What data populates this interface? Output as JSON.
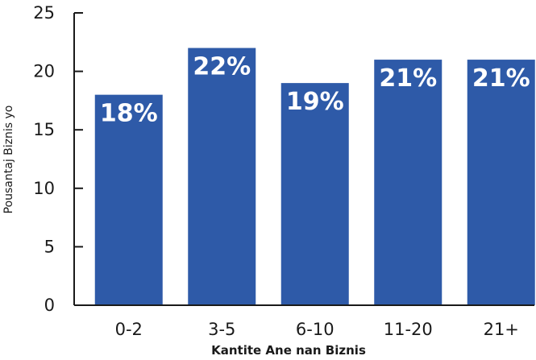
{
  "chart_data": {
    "type": "bar",
    "categories": [
      "0-2",
      "3-5",
      "6-10",
      "11-20",
      "21+"
    ],
    "values": [
      18,
      22,
      19,
      21,
      21
    ],
    "data_labels": [
      "18%",
      "22%",
      "19%",
      "21%",
      "21%"
    ],
    "title": "",
    "xlabel": "Kantite Ane nan Biznis",
    "ylabel": "Pousantaj Biznis yo",
    "ylim": [
      0,
      25
    ],
    "yticks": [
      0,
      5,
      10,
      15,
      20,
      25
    ],
    "grid": false,
    "legend": "none",
    "colors": {
      "bar": "#2e5aa8",
      "axis": "#1a1a1a",
      "label": "#ffffff"
    }
  }
}
